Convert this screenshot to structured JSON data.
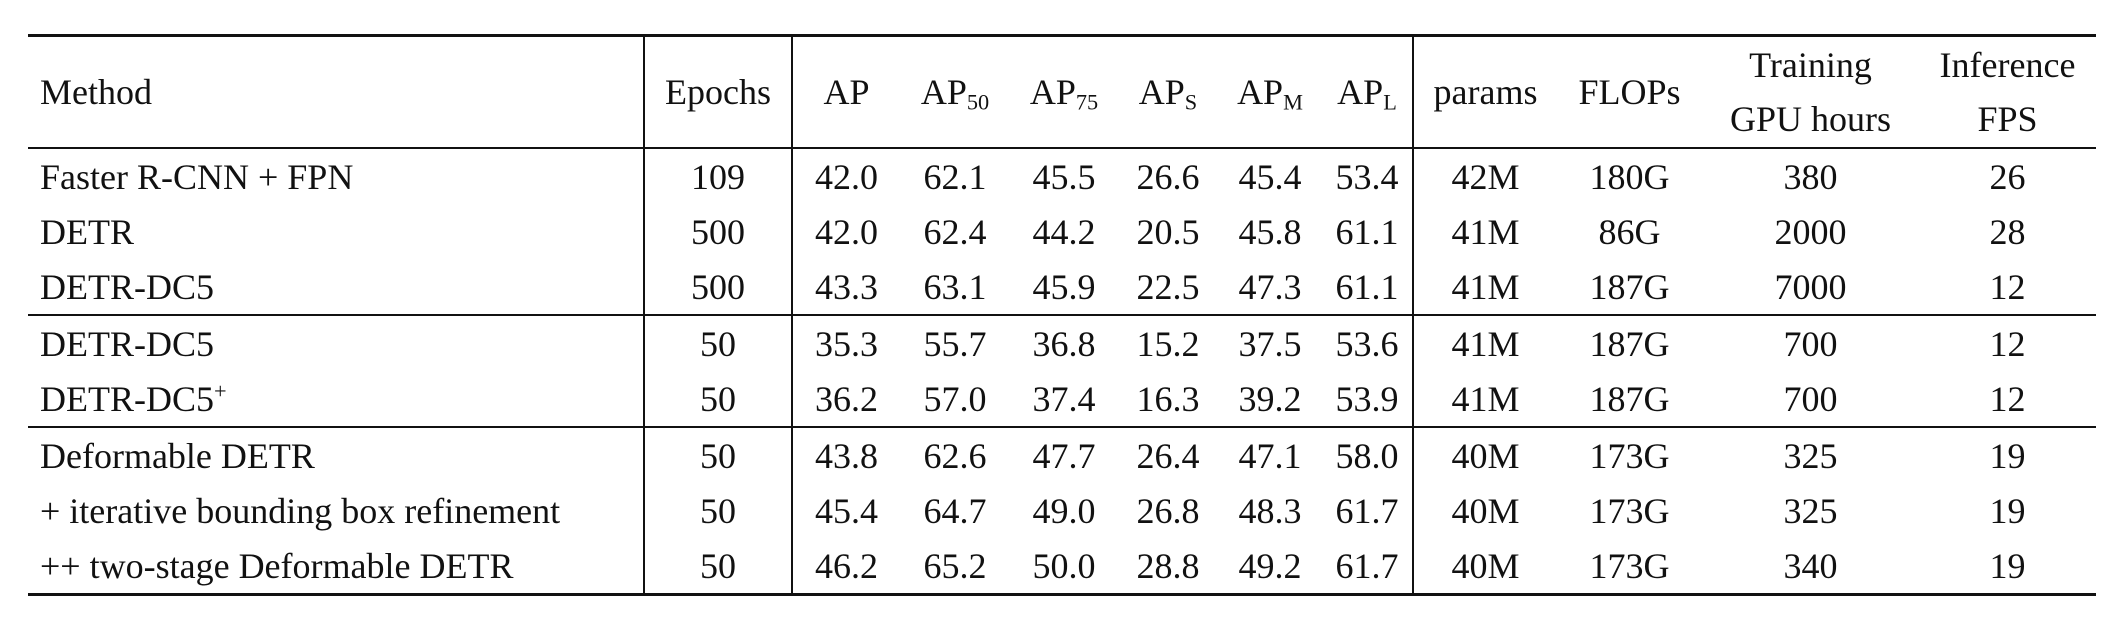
{
  "header": {
    "method": "Method",
    "epochs": "Epochs",
    "ap": "AP",
    "ap50_base": "AP",
    "ap50_sub": "50",
    "ap75_base": "AP",
    "ap75_sub": "75",
    "aps_base": "AP",
    "aps_sub": "S",
    "apm_base": "AP",
    "apm_sub": "M",
    "apl_base": "AP",
    "apl_sub": "L",
    "params": "params",
    "flops": "FLOPs",
    "training_line1": "Training",
    "training_line2": "GPU hours",
    "inference_line1": "Inference",
    "inference_line2": "FPS"
  },
  "rows": [
    {
      "method": "Faster R-CNN + FPN",
      "method_sup": "",
      "epochs": "109",
      "ap": "42.0",
      "ap50": "62.1",
      "ap75": "45.5",
      "aps": "26.6",
      "apm": "45.4",
      "apl": "53.4",
      "params": "42M",
      "flops": "180G",
      "gpu_hours": "380",
      "fps": "26"
    },
    {
      "method": "DETR",
      "method_sup": "",
      "epochs": "500",
      "ap": "42.0",
      "ap50": "62.4",
      "ap75": "44.2",
      "aps": "20.5",
      "apm": "45.8",
      "apl": "61.1",
      "params": "41M",
      "flops": "86G",
      "gpu_hours": "2000",
      "fps": "28"
    },
    {
      "method": "DETR-DC5",
      "method_sup": "",
      "epochs": "500",
      "ap": "43.3",
      "ap50": "63.1",
      "ap75": "45.9",
      "aps": "22.5",
      "apm": "47.3",
      "apl": "61.1",
      "params": "41M",
      "flops": "187G",
      "gpu_hours": "7000",
      "fps": "12"
    },
    {
      "method": "DETR-DC5",
      "method_sup": "",
      "epochs": "50",
      "ap": "35.3",
      "ap50": "55.7",
      "ap75": "36.8",
      "aps": "15.2",
      "apm": "37.5",
      "apl": "53.6",
      "params": "41M",
      "flops": "187G",
      "gpu_hours": "700",
      "fps": "12"
    },
    {
      "method": "DETR-DC5",
      "method_sup": "+",
      "epochs": "50",
      "ap": "36.2",
      "ap50": "57.0",
      "ap75": "37.4",
      "aps": "16.3",
      "apm": "39.2",
      "apl": "53.9",
      "params": "41M",
      "flops": "187G",
      "gpu_hours": "700",
      "fps": "12"
    },
    {
      "method": "Deformable DETR",
      "method_sup": "",
      "epochs": "50",
      "ap": "43.8",
      "ap50": "62.6",
      "ap75": "47.7",
      "aps": "26.4",
      "apm": "47.1",
      "apl": "58.0",
      "params": "40M",
      "flops": "173G",
      "gpu_hours": "325",
      "fps": "19"
    },
    {
      "method": "+ iterative bounding box refinement",
      "method_sup": "",
      "epochs": "50",
      "ap": "45.4",
      "ap50": "64.7",
      "ap75": "49.0",
      "aps": "26.8",
      "apm": "48.3",
      "apl": "61.7",
      "params": "40M",
      "flops": "173G",
      "gpu_hours": "325",
      "fps": "19"
    },
    {
      "method": "++ two-stage Deformable DETR",
      "method_sup": "",
      "epochs": "50",
      "ap": "46.2",
      "ap50": "65.2",
      "ap75": "50.0",
      "aps": "28.8",
      "apm": "49.2",
      "apl": "61.7",
      "params": "40M",
      "flops": "173G",
      "gpu_hours": "340",
      "fps": "19"
    }
  ]
}
